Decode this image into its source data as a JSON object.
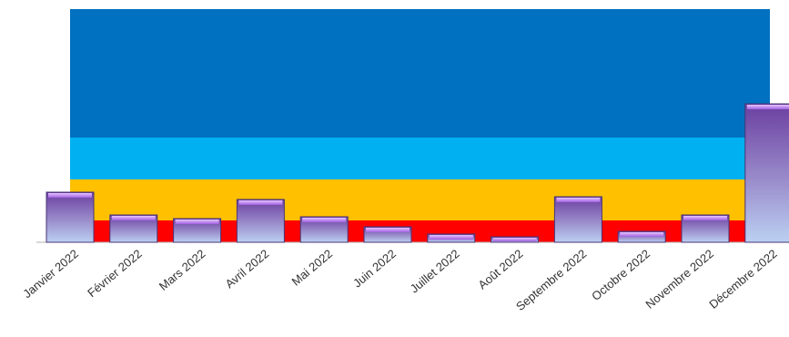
{
  "chart_data": {
    "type": "bar",
    "categories": [
      "Janvier 2022",
      "Février 2022",
      "Mars 2022",
      "Avril 2022",
      "Mai 2022",
      "Juin 2022",
      "Juillet 2022",
      "Août 2022",
      "Septembre 2022",
      "Octobre 2022",
      "Novembre 2022",
      "Décembre 2022"
    ],
    "values": [
      55,
      30,
      26,
      47,
      28,
      17,
      9,
      6,
      50,
      12,
      30,
      152
    ],
    "ylim": [
      0,
      256
    ],
    "bands": [
      {
        "from": 0,
        "to": 24,
        "color": "#FF0000"
      },
      {
        "from": 24,
        "to": 69,
        "color": "#FFC000"
      },
      {
        "from": 69,
        "to": 115,
        "color": "#00B0F0"
      },
      {
        "from": 115,
        "to": 256,
        "color": "#0070C0"
      }
    ],
    "bar_colors": {
      "top": "#6B3FA0",
      "bottom": "#B9CBEF",
      "cap": "#C07CF0",
      "edge": "#4A3575"
    },
    "grid": false,
    "legend": "none"
  }
}
